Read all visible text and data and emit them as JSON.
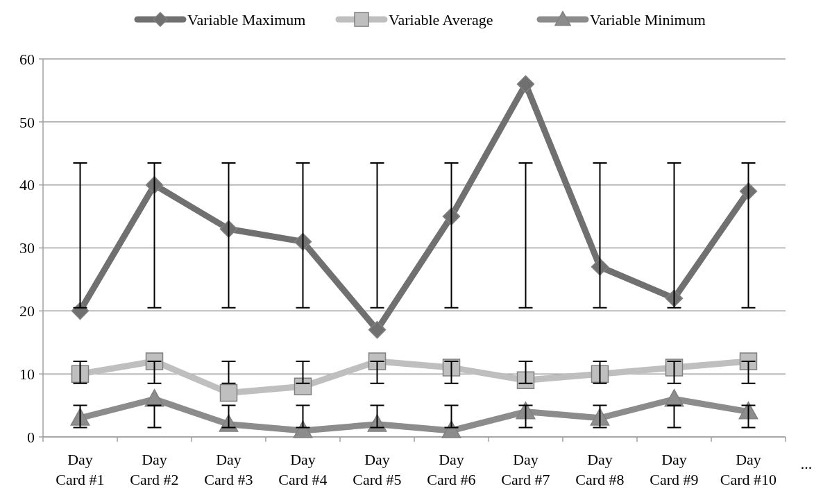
{
  "chart_data": {
    "type": "line",
    "categories": [
      "Day Card #1",
      "Day Card #2",
      "Day Card #3",
      "Day Card #4",
      "Day Card #5",
      "Day Card #6",
      "Day Card #7",
      "Day Card #8",
      "Day Card #9",
      "Day Card #10"
    ],
    "series": [
      {
        "name": "Variable Maximum",
        "color": "#707070",
        "marker": "diamond",
        "values": [
          20,
          40,
          33,
          31,
          17,
          35,
          56,
          27,
          22,
          39
        ],
        "errors": [
          [
            20.5,
            43.5
          ],
          [
            20.5,
            43.5
          ],
          [
            20.5,
            43.5
          ],
          [
            20.5,
            43.5
          ],
          [
            20.5,
            43.5
          ],
          [
            20.5,
            43.5
          ],
          [
            20.5,
            43.5
          ],
          [
            20.5,
            43.5
          ],
          [
            20.5,
            43.5
          ],
          [
            20.5,
            43.5
          ]
        ]
      },
      {
        "name": "Variable Average",
        "color": "#bfbfbf",
        "marker": "square",
        "values": [
          10,
          12,
          7,
          8,
          12,
          11,
          9,
          10,
          11,
          12
        ],
        "errors": [
          [
            8.5,
            12
          ],
          [
            8.5,
            12
          ],
          [
            8.5,
            12
          ],
          [
            8.5,
            12
          ],
          [
            8.5,
            12
          ],
          [
            8.5,
            12
          ],
          [
            8.5,
            12
          ],
          [
            8.5,
            12
          ],
          [
            8.5,
            12
          ],
          [
            8.5,
            12
          ]
        ]
      },
      {
        "name": "Variable Minimum",
        "color": "#8c8c8c",
        "marker": "triangle",
        "values": [
          3,
          6,
          2,
          1,
          2,
          1,
          4,
          3,
          6,
          4
        ],
        "errors": [
          [
            1.5,
            5
          ],
          [
            1.5,
            5
          ],
          [
            1.5,
            5
          ],
          [
            1.5,
            5
          ],
          [
            1.5,
            5
          ],
          [
            1.5,
            5
          ],
          [
            1.5,
            5
          ],
          [
            1.5,
            5
          ],
          [
            1.5,
            5
          ],
          [
            1.5,
            5
          ]
        ]
      }
    ],
    "ylim": [
      0,
      60
    ],
    "yticks": [
      0,
      10,
      20,
      30,
      40,
      50,
      60
    ],
    "grid": "y",
    "legend": "top",
    "line_style": "solid",
    "annotations": [
      "..."
    ]
  }
}
